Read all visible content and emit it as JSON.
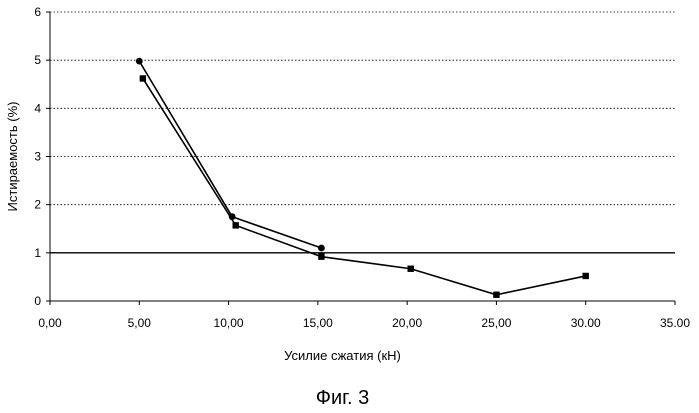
{
  "chart_data": {
    "type": "line",
    "xlabel": "Усилие сжатия (кН)",
    "ylabel": "Истираемость (%)",
    "caption": "Фиг. 3",
    "xlim": [
      0,
      35
    ],
    "ylim": [
      0,
      6
    ],
    "x_ticks": [
      0,
      5,
      10,
      15,
      20,
      25,
      30,
      35
    ],
    "x_tick_labels": [
      "0,00",
      "5,00",
      "10,00",
      "15,00",
      "20,00",
      "25,00",
      "30.00",
      "35.00"
    ],
    "y_ticks": [
      0,
      1,
      2,
      3,
      4,
      5,
      6
    ],
    "y_tick_labels": [
      "0",
      "1",
      "2",
      "3",
      "4",
      "5",
      "6"
    ],
    "grid": "horizontal dotted",
    "reference_line": 1,
    "series": [
      {
        "marker": "circle",
        "points": [
          [
            5.0,
            4.98
          ],
          [
            10.2,
            1.75
          ],
          [
            15.2,
            1.1
          ]
        ]
      },
      {
        "marker": "square",
        "points": [
          [
            5.2,
            4.62
          ],
          [
            10.4,
            1.57
          ],
          [
            15.2,
            0.92
          ],
          [
            20.2,
            0.67
          ],
          [
            25.0,
            0.13
          ],
          [
            30.0,
            0.52
          ]
        ]
      }
    ],
    "colors": {
      "line": "#000000",
      "grid": "#000000",
      "background": "#ffffff"
    }
  }
}
